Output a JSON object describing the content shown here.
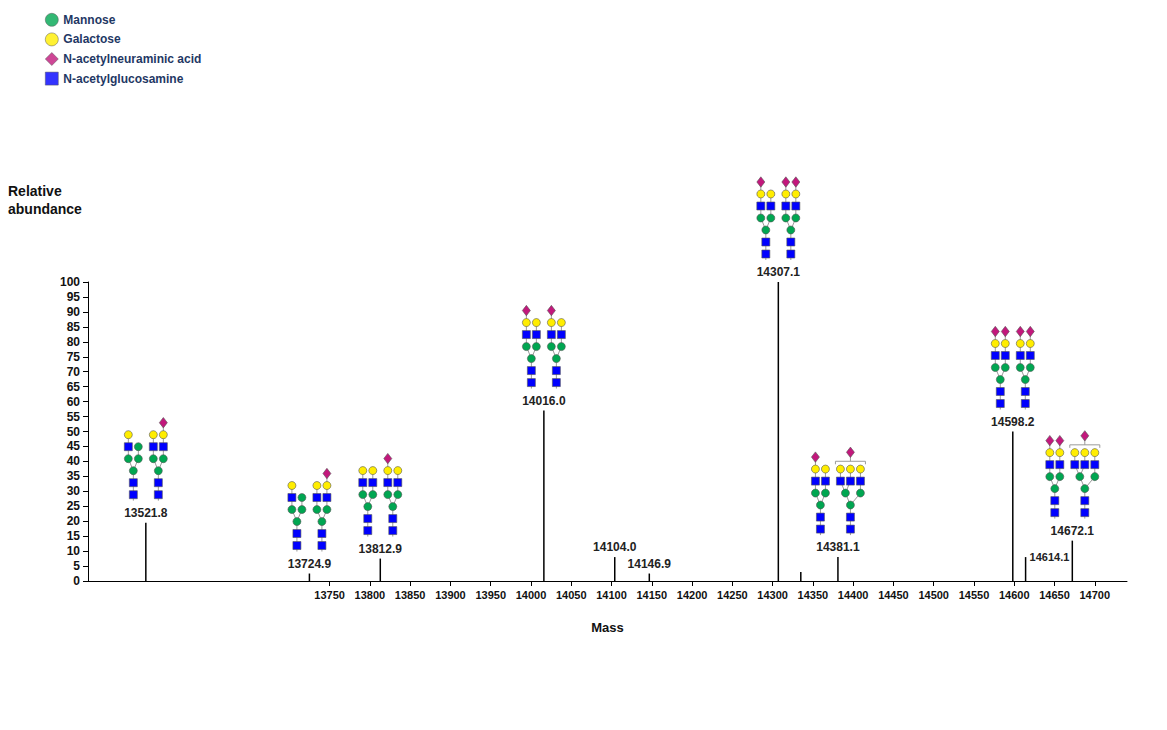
{
  "chart_data": {
    "type": "bar",
    "x_label": "Mass",
    "y_label": "Relative abundance",
    "xlim": [
      13450,
      14740
    ],
    "xticks": [
      13750,
      13800,
      13850,
      13900,
      13950,
      14000,
      14050,
      14100,
      14150,
      14200,
      14250,
      14300,
      14350,
      14400,
      14450,
      14500,
      14550,
      14600,
      14650,
      14700
    ],
    "ylim": [
      0,
      100
    ],
    "yticks": [
      0,
      5,
      10,
      15,
      20,
      25,
      30,
      35,
      40,
      45,
      50,
      55,
      60,
      65,
      70,
      75,
      80,
      85,
      90,
      95,
      100
    ],
    "grid": false,
    "legend": "top-left",
    "color": "#000000",
    "residues": [
      {
        "name": "Mannose",
        "color": "#00a651",
        "marker": "circle"
      },
      {
        "name": "Galactose",
        "color": "#ffed00",
        "marker": "circle"
      },
      {
        "name": "N-acetylneuraminic acid",
        "color": "#c2187c",
        "marker": "diamond"
      },
      {
        "name": "N-acetylglucosamine",
        "color": "#0000ff",
        "marker": "rect"
      }
    ],
    "core": [
      "N-acetylglucosamine",
      "N-acetylglucosamine",
      "Mannose"
    ],
    "branch": "Mannose",
    "peaks": [
      {
        "x": 13521.8,
        "label": "13521.8",
        "value": 19.5,
        "glycans": [
          {
            "antennae": [
              [
                "N-acetylglucosamine",
                "Galactose"
              ],
              [
                "Mannose"
              ]
            ]
          },
          {
            "antennae": [
              [
                "N-acetylglucosamine",
                "Galactose"
              ],
              [
                "N-acetylglucosamine",
                "Galactose",
                "N-acetylneuraminic acid"
              ]
            ]
          }
        ]
      },
      {
        "x": 13724.9,
        "label": "13724.9",
        "value": 2.5,
        "glycans": [
          {
            "antennae": [
              [
                "N-acetylglucosamine",
                "Galactose"
              ],
              [
                "Mannose"
              ]
            ]
          },
          {
            "antennae": [
              [
                "N-acetylglucosamine",
                "Galactose"
              ],
              [
                "N-acetylglucosamine",
                "Galactose",
                "N-acetylneuraminic acid"
              ]
            ]
          }
        ]
      },
      {
        "x": 13812.9,
        "label": "13812.9",
        "value": 7.5,
        "glycans": [
          {
            "antennae": [
              [
                "N-acetylglucosamine",
                "Galactose"
              ],
              [
                "N-acetylglucosamine",
                "Galactose"
              ]
            ]
          },
          {
            "antennae": [
              [
                "N-acetylglucosamine",
                "Galactose",
                "N-acetylneuraminic acid"
              ],
              [
                "N-acetylglucosamine",
                "Galactose"
              ]
            ]
          }
        ]
      },
      {
        "x": 14016.0,
        "label": "14016.0",
        "value": 57,
        "glycans": [
          {
            "antennae": [
              [
                "N-acetylglucosamine",
                "Galactose",
                "N-acetylneuraminic acid"
              ],
              [
                "N-acetylglucosamine",
                "Galactose"
              ]
            ]
          },
          {
            "antennae": [
              [
                "N-acetylglucosamine",
                "Galactose",
                "N-acetylneuraminic acid"
              ],
              [
                "N-acetylglucosamine",
                "Galactose"
              ]
            ]
          }
        ]
      },
      {
        "x": 14104.0,
        "label": "14104.0",
        "value": 8
      },
      {
        "x": 14146.9,
        "label": "14146.9",
        "value": 2.5
      },
      {
        "x": 14307.1,
        "label": "14307.1",
        "value": 100,
        "glycans": [
          {
            "antennae": [
              [
                "N-acetylglucosamine",
                "Galactose",
                "N-acetylneuraminic acid"
              ],
              [
                "N-acetylglucosamine",
                "Galactose"
              ]
            ]
          },
          {
            "antennae": [
              [
                "N-acetylglucosamine",
                "Galactose",
                "N-acetylneuraminic acid"
              ],
              [
                "N-acetylglucosamine",
                "Galactose",
                "N-acetylneuraminic acid"
              ]
            ]
          }
        ]
      },
      {
        "x": 14335,
        "value": 3
      },
      {
        "x": 14381.1,
        "label": "14381.1",
        "value": 8,
        "glycans": [
          {
            "antennae": [
              [
                "N-acetylglucosamine",
                "Galactose",
                "N-acetylneuraminic acid"
              ],
              [
                "N-acetylglucosamine",
                "Galactose"
              ]
            ]
          },
          {
            "antennae": [
              [
                "N-acetylglucosamine",
                "Galactose"
              ],
              [
                "N-acetylglucosamine",
                "Galactose"
              ],
              [
                "N-acetylglucosamine",
                "Galactose"
              ]
            ],
            "bracket": [
              "N-acetylneuraminic acid"
            ]
          }
        ]
      },
      {
        "x": 14598.2,
        "label": "14598.2",
        "value": 50,
        "glycans": [
          {
            "antennae": [
              [
                "N-acetylglucosamine",
                "Galactose",
                "N-acetylneuraminic acid"
              ],
              [
                "N-acetylglucosamine",
                "Galactose",
                "N-acetylneuraminic acid"
              ]
            ]
          },
          {
            "antennae": [
              [
                "N-acetylglucosamine",
                "Galactose",
                "N-acetylneuraminic acid"
              ],
              [
                "N-acetylglucosamine",
                "Galactose",
                "N-acetylneuraminic acid"
              ]
            ]
          }
        ]
      },
      {
        "x": 14614.1,
        "label": "14614.1",
        "value": 8
      },
      {
        "x": 14672.1,
        "label": "14672.1",
        "value": 13.5,
        "glycans": [
          {
            "antennae": [
              [
                "N-acetylglucosamine",
                "Galactose",
                "N-acetylneuraminic acid"
              ],
              [
                "N-acetylglucosamine",
                "Galactose",
                "N-acetylneuraminic acid"
              ]
            ]
          },
          {
            "antennae": [
              [
                "N-acetylglucosamine",
                "Galactose"
              ],
              [
                "N-acetylglucosamine",
                "Galactose"
              ],
              [
                "N-acetylglucosamine",
                "Galactose"
              ]
            ],
            "bracket": [
              "N-acetylneuraminic acid"
            ]
          }
        ]
      }
    ]
  }
}
